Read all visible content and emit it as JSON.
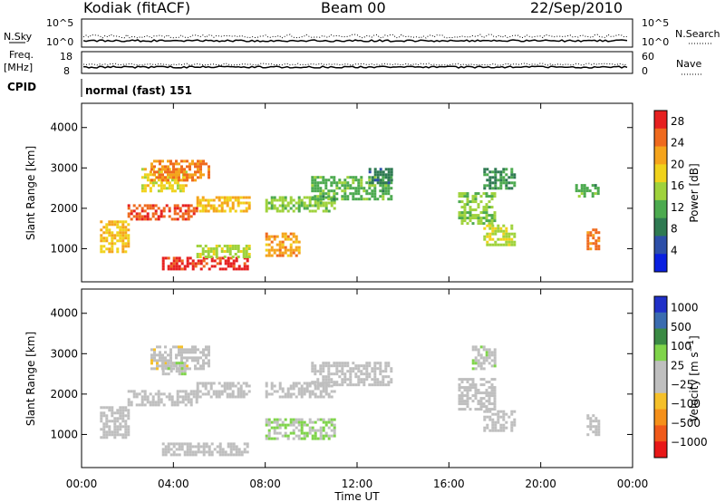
{
  "header": {
    "station": "Kodiak (fitACF)",
    "beam": "Beam 00",
    "date": "22/Sep/2010"
  },
  "top_panels": {
    "nsky_label": "N.Sky",
    "nsky_ticks": [
      "10^5",
      "10^0"
    ],
    "nsearch_label": "N.Search",
    "nsearch_ticks": [
      "10^5",
      "10^0"
    ],
    "freq_label": "Freq.",
    "freq_unit": "[MHz]",
    "freq_ticks": [
      "18",
      "8"
    ],
    "nave_label": "Nave",
    "nave_ticks": [
      "60",
      "0"
    ],
    "cpid_label": "CPID",
    "cpid_value": "normal (fast) 151"
  },
  "colors": {
    "power": [
      "#0a20e0",
      "#2d4fa8",
      "#2f7a52",
      "#4caa4f",
      "#9fd23c",
      "#f0d21c",
      "#f5a41c",
      "#ef6a1e",
      "#e62020"
    ],
    "velocity": [
      "#e81818",
      "#f05a1a",
      "#f5901a",
      "#f5c02a",
      "#bfbfbf",
      "#bfbfbf",
      "#7fd44a",
      "#3a8a44",
      "#3a6cb0",
      "#2030c8"
    ],
    "panel_frame": "#000000"
  },
  "chart_data": [
    {
      "type": "heatmap",
      "title": "",
      "xlabel": "Time UT",
      "ylabel": "Slant Range [km]",
      "x_ticks": [
        "00:00",
        "04:00",
        "08:00",
        "12:00",
        "16:00",
        "20:00",
        "00:00"
      ],
      "xlim_hours": [
        0,
        24
      ],
      "y_ticks": [
        "1000",
        "2000",
        "3000",
        "4000"
      ],
      "ylim_km": [
        180,
        4600
      ],
      "colorbar_label": "Power [dB]",
      "colorbar_ticks": [
        "4",
        "8",
        "12",
        "16",
        "20",
        "24",
        "28"
      ],
      "colorbar_range": [
        0,
        30
      ],
      "regions": [
        {
          "t": [
            0.8,
            2.0
          ],
          "r": [
            900,
            1700
          ],
          "v": 20
        },
        {
          "t": [
            2.0,
            5.0
          ],
          "r": [
            1700,
            2100
          ],
          "v": 26
        },
        {
          "t": [
            2.6,
            4.6
          ],
          "r": [
            2400,
            3000
          ],
          "v": 18
        },
        {
          "t": [
            3.0,
            5.5
          ],
          "r": [
            2700,
            3200
          ],
          "v": 24
        },
        {
          "t": [
            3.5,
            7.2
          ],
          "r": [
            500,
            800
          ],
          "v": 28
        },
        {
          "t": [
            5.0,
            7.3
          ],
          "r": [
            800,
            1100
          ],
          "v": 16
        },
        {
          "t": [
            5.0,
            7.3
          ],
          "r": [
            1900,
            2300
          ],
          "v": 20
        },
        {
          "t": [
            8.0,
            9.5
          ],
          "r": [
            800,
            1400
          ],
          "v": 22
        },
        {
          "t": [
            8.0,
            11.0
          ],
          "r": [
            1900,
            2300
          ],
          "v": 14
        },
        {
          "t": [
            10.0,
            13.5
          ],
          "r": [
            2200,
            2800
          ],
          "v": 12
        },
        {
          "t": [
            12.5,
            13.5
          ],
          "r": [
            2600,
            3000
          ],
          "v": 8
        },
        {
          "t": [
            16.4,
            18.0
          ],
          "r": [
            1600,
            2400
          ],
          "v": 14
        },
        {
          "t": [
            17.5,
            18.9
          ],
          "r": [
            1100,
            1600
          ],
          "v": 16
        },
        {
          "t": [
            17.5,
            18.9
          ],
          "r": [
            2500,
            3000
          ],
          "v": 10
        },
        {
          "t": [
            22.0,
            22.5
          ],
          "r": [
            1000,
            1500
          ],
          "v": 24
        },
        {
          "t": [
            21.5,
            22.5
          ],
          "r": [
            2300,
            2600
          ],
          "v": 12
        }
      ]
    },
    {
      "type": "heatmap",
      "title": "",
      "xlabel": "Time UT",
      "ylabel": "Slant Range [km]",
      "x_ticks": [
        "00:00",
        "04:00",
        "08:00",
        "12:00",
        "16:00",
        "20:00",
        "00:00"
      ],
      "xlim_hours": [
        0,
        24
      ],
      "y_ticks": [
        "1000",
        "2000",
        "3000",
        "4000"
      ],
      "ylim_km": [
        180,
        4600
      ],
      "colorbar_label": "Velocity [m s^-1]",
      "colorbar_ticks": [
        "1000",
        "500",
        "100",
        "25",
        "−25",
        "−100",
        "−500",
        "−1000"
      ],
      "colorbar_range": [
        -1000,
        1000
      ],
      "regions": [
        {
          "t": [
            0.8,
            2.0
          ],
          "r": [
            900,
            1700
          ],
          "v": 0
        },
        {
          "t": [
            2.0,
            5.0
          ],
          "r": [
            1700,
            2100
          ],
          "v": 0
        },
        {
          "t": [
            3.0,
            5.5
          ],
          "r": [
            2600,
            3200
          ],
          "v": -80
        },
        {
          "t": [
            3.5,
            4.5
          ],
          "r": [
            2500,
            2800
          ],
          "v": 150
        },
        {
          "t": [
            3.5,
            7.2
          ],
          "r": [
            500,
            800
          ],
          "v": 0
        },
        {
          "t": [
            5.0,
            7.3
          ],
          "r": [
            1900,
            2300
          ],
          "v": 0
        },
        {
          "t": [
            8.0,
            11.0
          ],
          "r": [
            900,
            1400
          ],
          "v": 200
        },
        {
          "t": [
            8.0,
            11.0
          ],
          "r": [
            1900,
            2300
          ],
          "v": 0
        },
        {
          "t": [
            10.0,
            13.5
          ],
          "r": [
            2200,
            2800
          ],
          "v": 0
        },
        {
          "t": [
            16.4,
            18.0
          ],
          "r": [
            1600,
            2400
          ],
          "v": 0
        },
        {
          "t": [
            17.0,
            18.0
          ],
          "r": [
            2600,
            3200
          ],
          "v": 120
        },
        {
          "t": [
            17.5,
            18.9
          ],
          "r": [
            1100,
            1600
          ],
          "v": 0
        },
        {
          "t": [
            22.0,
            22.5
          ],
          "r": [
            1000,
            1500
          ],
          "v": -60
        }
      ]
    }
  ]
}
